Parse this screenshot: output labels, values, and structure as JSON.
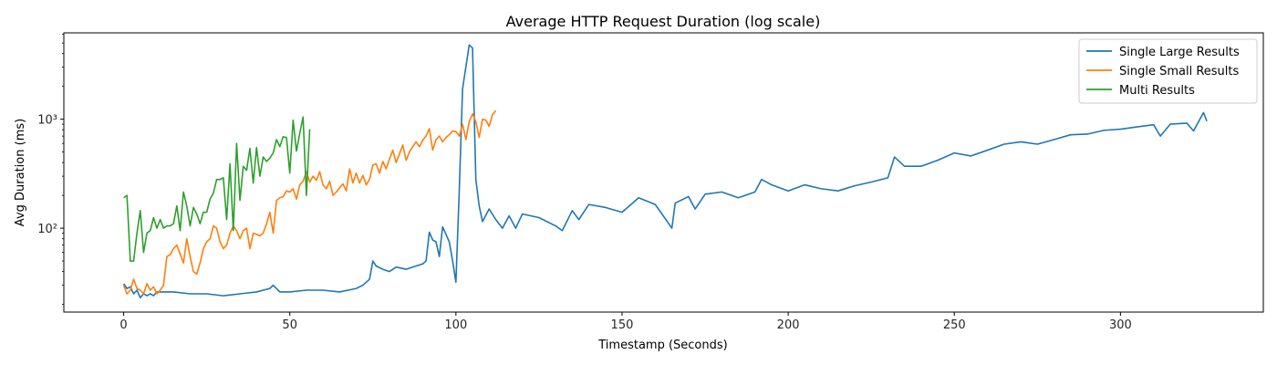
{
  "chart_data": {
    "type": "line",
    "title": "Average HTTP Request Duration (log scale)",
    "xlabel": "Timestamp (Seconds)",
    "ylabel": "Avg Duration (ms)",
    "y_scale": "log",
    "xlim": [
      -18,
      343
    ],
    "ylim": [
      17,
      6200
    ],
    "x_ticks": [
      0,
      50,
      100,
      150,
      200,
      250,
      300
    ],
    "y_ticks": [
      100,
      1000
    ],
    "y_tick_labels": [
      "10²",
      "10³"
    ],
    "grid": false,
    "legend_position": "top-right",
    "series": [
      {
        "name": "Single Large Results",
        "color": "#1f77b4",
        "points": [
          [
            0,
            31
          ],
          [
            1,
            28
          ],
          [
            2,
            29
          ],
          [
            3,
            25
          ],
          [
            4,
            27
          ],
          [
            5,
            23
          ],
          [
            6,
            25
          ],
          [
            7,
            24
          ],
          [
            8,
            25
          ],
          [
            9,
            24
          ],
          [
            10,
            26
          ],
          [
            12,
            26
          ],
          [
            15,
            26
          ],
          [
            20,
            25
          ],
          [
            25,
            25
          ],
          [
            30,
            24
          ],
          [
            35,
            25
          ],
          [
            40,
            26
          ],
          [
            44,
            28
          ],
          [
            45,
            30
          ],
          [
            47,
            26
          ],
          [
            50,
            26
          ],
          [
            55,
            27
          ],
          [
            60,
            27
          ],
          [
            65,
            26
          ],
          [
            70,
            28
          ],
          [
            72,
            30
          ],
          [
            74,
            34
          ],
          [
            75,
            50
          ],
          [
            76,
            45
          ],
          [
            78,
            42
          ],
          [
            80,
            40
          ],
          [
            82,
            44
          ],
          [
            85,
            42
          ],
          [
            88,
            45
          ],
          [
            90,
            47
          ],
          [
            91,
            50
          ],
          [
            92,
            92
          ],
          [
            93,
            78
          ],
          [
            94,
            75
          ],
          [
            95,
            55
          ],
          [
            96,
            103
          ],
          [
            97,
            88
          ],
          [
            98,
            75
          ],
          [
            99,
            50
          ],
          [
            100,
            32
          ],
          [
            101,
            220
          ],
          [
            102,
            1900
          ],
          [
            104,
            4800
          ],
          [
            105,
            4500
          ],
          [
            106,
            280
          ],
          [
            107,
            160
          ],
          [
            108,
            115
          ],
          [
            110,
            150
          ],
          [
            112,
            120
          ],
          [
            114,
            100
          ],
          [
            116,
            130
          ],
          [
            118,
            100
          ],
          [
            120,
            135
          ],
          [
            125,
            125
          ],
          [
            130,
            105
          ],
          [
            132,
            95
          ],
          [
            135,
            145
          ],
          [
            137,
            120
          ],
          [
            140,
            165
          ],
          [
            145,
            155
          ],
          [
            150,
            140
          ],
          [
            155,
            190
          ],
          [
            160,
            165
          ],
          [
            165,
            100
          ],
          [
            166,
            170
          ],
          [
            170,
            195
          ],
          [
            172,
            150
          ],
          [
            175,
            205
          ],
          [
            180,
            215
          ],
          [
            185,
            190
          ],
          [
            190,
            215
          ],
          [
            192,
            280
          ],
          [
            195,
            250
          ],
          [
            200,
            220
          ],
          [
            205,
            250
          ],
          [
            210,
            230
          ],
          [
            215,
            220
          ],
          [
            220,
            245
          ],
          [
            225,
            265
          ],
          [
            230,
            290
          ],
          [
            232,
            450
          ],
          [
            235,
            370
          ],
          [
            240,
            370
          ],
          [
            245,
            420
          ],
          [
            250,
            490
          ],
          [
            255,
            460
          ],
          [
            260,
            520
          ],
          [
            265,
            590
          ],
          [
            270,
            620
          ],
          [
            275,
            590
          ],
          [
            280,
            650
          ],
          [
            285,
            720
          ],
          [
            290,
            730
          ],
          [
            295,
            790
          ],
          [
            300,
            810
          ],
          [
            305,
            850
          ],
          [
            310,
            890
          ],
          [
            312,
            700
          ],
          [
            315,
            900
          ],
          [
            320,
            920
          ],
          [
            322,
            780
          ],
          [
            325,
            1150
          ],
          [
            326,
            960
          ]
        ]
      },
      {
        "name": "Single Small Results",
        "color": "#ff7f0e",
        "points": [
          [
            0,
            30
          ],
          [
            1,
            25
          ],
          [
            2,
            27
          ],
          [
            3,
            34
          ],
          [
            4,
            28
          ],
          [
            5,
            27
          ],
          [
            6,
            25
          ],
          [
            7,
            31
          ],
          [
            8,
            27
          ],
          [
            9,
            29
          ],
          [
            10,
            25
          ],
          [
            11,
            27
          ],
          [
            12,
            30
          ],
          [
            13,
            55
          ],
          [
            14,
            57
          ],
          [
            15,
            65
          ],
          [
            16,
            70
          ],
          [
            17,
            58
          ],
          [
            18,
            48
          ],
          [
            19,
            80
          ],
          [
            20,
            55
          ],
          [
            21,
            40
          ],
          [
            22,
            38
          ],
          [
            23,
            48
          ],
          [
            24,
            65
          ],
          [
            25,
            75
          ],
          [
            26,
            80
          ],
          [
            27,
            105
          ],
          [
            28,
            100
          ],
          [
            29,
            75
          ],
          [
            30,
            65
          ],
          [
            31,
            70
          ],
          [
            32,
            90
          ],
          [
            33,
            105
          ],
          [
            34,
            95
          ],
          [
            35,
            80
          ],
          [
            36,
            95
          ],
          [
            37,
            100
          ],
          [
            38,
            65
          ],
          [
            39,
            90
          ],
          [
            40,
            88
          ],
          [
            41,
            85
          ],
          [
            42,
            90
          ],
          [
            43,
            110
          ],
          [
            44,
            140
          ],
          [
            45,
            90
          ],
          [
            46,
            180
          ],
          [
            47,
            190
          ],
          [
            48,
            195
          ],
          [
            49,
            220
          ],
          [
            50,
            215
          ],
          [
            51,
            230
          ],
          [
            52,
            185
          ],
          [
            53,
            250
          ],
          [
            54,
            270
          ],
          [
            55,
            330
          ],
          [
            56,
            265
          ],
          [
            57,
            300
          ],
          [
            58,
            275
          ],
          [
            59,
            330
          ],
          [
            60,
            250
          ],
          [
            61,
            230
          ],
          [
            62,
            270
          ],
          [
            63,
            200
          ],
          [
            64,
            215
          ],
          [
            65,
            235
          ],
          [
            66,
            255
          ],
          [
            67,
            220
          ],
          [
            68,
            350
          ],
          [
            69,
            260
          ],
          [
            70,
            320
          ],
          [
            71,
            260
          ],
          [
            72,
            305
          ],
          [
            73,
            250
          ],
          [
            74,
            280
          ],
          [
            75,
            380
          ],
          [
            76,
            390
          ],
          [
            77,
            320
          ],
          [
            78,
            410
          ],
          [
            79,
            350
          ],
          [
            80,
            430
          ],
          [
            81,
            520
          ],
          [
            82,
            400
          ],
          [
            83,
            480
          ],
          [
            84,
            580
          ],
          [
            85,
            420
          ],
          [
            86,
            500
          ],
          [
            87,
            560
          ],
          [
            88,
            620
          ],
          [
            89,
            560
          ],
          [
            90,
            640
          ],
          [
            91,
            700
          ],
          [
            92,
            820
          ],
          [
            93,
            520
          ],
          [
            94,
            650
          ],
          [
            95,
            700
          ],
          [
            96,
            620
          ],
          [
            97,
            680
          ],
          [
            98,
            720
          ],
          [
            99,
            780
          ],
          [
            100,
            770
          ],
          [
            101,
            700
          ],
          [
            102,
            900
          ],
          [
            103,
            650
          ],
          [
            104,
            950
          ],
          [
            105,
            1120
          ],
          [
            106,
            950
          ],
          [
            107,
            680
          ],
          [
            108,
            1000
          ],
          [
            109,
            980
          ],
          [
            110,
            860
          ],
          [
            111,
            1100
          ],
          [
            112,
            1200
          ]
        ]
      },
      {
        "name": "Multi Results",
        "color": "#2ca02c",
        "points": [
          [
            0,
            190
          ],
          [
            1,
            200
          ],
          [
            2,
            50
          ],
          [
            3,
            50
          ],
          [
            4,
            90
          ],
          [
            5,
            145
          ],
          [
            6,
            60
          ],
          [
            7,
            90
          ],
          [
            8,
            95
          ],
          [
            9,
            125
          ],
          [
            10,
            100
          ],
          [
            11,
            120
          ],
          [
            12,
            100
          ],
          [
            13,
            105
          ],
          [
            14,
            105
          ],
          [
            15,
            110
          ],
          [
            16,
            160
          ],
          [
            17,
            95
          ],
          [
            18,
            215
          ],
          [
            19,
            160
          ],
          [
            20,
            105
          ],
          [
            21,
            155
          ],
          [
            22,
            135
          ],
          [
            23,
            110
          ],
          [
            24,
            140
          ],
          [
            25,
            140
          ],
          [
            26,
            185
          ],
          [
            27,
            210
          ],
          [
            28,
            280
          ],
          [
            29,
            280
          ],
          [
            30,
            290
          ],
          [
            31,
            120
          ],
          [
            32,
            390
          ],
          [
            33,
            95
          ],
          [
            34,
            600
          ],
          [
            35,
            180
          ],
          [
            36,
            370
          ],
          [
            37,
            340
          ],
          [
            38,
            540
          ],
          [
            39,
            260
          ],
          [
            40,
            550
          ],
          [
            41,
            300
          ],
          [
            42,
            450
          ],
          [
            43,
            410
          ],
          [
            44,
            440
          ],
          [
            45,
            490
          ],
          [
            46,
            650
          ],
          [
            47,
            560
          ],
          [
            48,
            690
          ],
          [
            49,
            680
          ],
          [
            50,
            320
          ],
          [
            51,
            980
          ],
          [
            52,
            510
          ],
          [
            53,
            740
          ],
          [
            54,
            1050
          ],
          [
            55,
            200
          ],
          [
            56,
            810
          ]
        ]
      }
    ]
  }
}
